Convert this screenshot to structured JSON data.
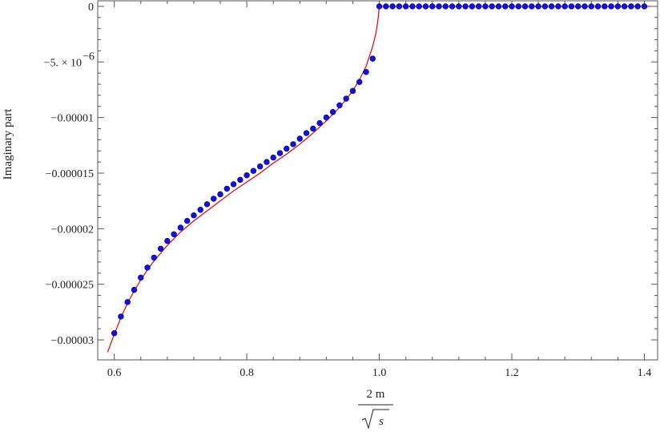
{
  "chart_data": {
    "type": "line",
    "title": "",
    "xlabel_numerator": "2 m",
    "xlabel_denominator": "s",
    "ylabel": "Imaginary part",
    "xlim": [
      0.575,
      1.42
    ],
    "ylim": [
      -3.18e-05,
      5e-07
    ],
    "x_ticks": [
      {
        "value": 0.6,
        "label": "0.6"
      },
      {
        "value": 0.8,
        "label": "0.8"
      },
      {
        "value": 1.0,
        "label": "1.0"
      },
      {
        "value": 1.2,
        "label": "1.2"
      },
      {
        "value": 1.4,
        "label": "1.4"
      }
    ],
    "y_ticks": [
      {
        "value": 0,
        "label": "0"
      },
      {
        "value": -5e-06,
        "label": "-5.×10^-6",
        "mantissa": "−5. × 10",
        "exponent": "−6"
      },
      {
        "value": -1e-05,
        "label": "−0.00001"
      },
      {
        "value": -1.5e-05,
        "label": "−0.000015"
      },
      {
        "value": -2e-05,
        "label": "−0.00002"
      },
      {
        "value": -2.5e-05,
        "label": "−0.000025"
      },
      {
        "value": -3e-05,
        "label": "−0.00003"
      }
    ],
    "grid": false,
    "legend": "none",
    "colors": {
      "curve": "#e00000",
      "points": "#1010ee",
      "point_outline": "#000066",
      "axis": "#555555"
    },
    "series": [
      {
        "kind": "curve",
        "x": [
          0.59,
          0.6,
          0.61,
          0.62,
          0.63,
          0.64,
          0.65,
          0.66,
          0.67,
          0.68,
          0.69,
          0.7,
          0.72,
          0.74,
          0.76,
          0.78,
          0.8,
          0.82,
          0.84,
          0.86,
          0.88,
          0.9,
          0.92,
          0.94,
          0.96,
          0.97,
          0.98,
          0.99,
          0.995,
          0.998,
          1.0,
          1.01,
          1.1,
          1.2,
          1.3,
          1.4,
          1.41
        ],
        "y": [
          -3.11e-05,
          -2.95e-05,
          -2.8e-05,
          -2.67e-05,
          -2.56e-05,
          -2.46e-05,
          -2.37e-05,
          -2.29e-05,
          -2.22e-05,
          -2.15e-05,
          -2.09e-05,
          -2.03e-05,
          -1.93e-05,
          -1.84e-05,
          -1.75e-05,
          -1.66e-05,
          -1.58e-05,
          -1.5e-05,
          -1.41e-05,
          -1.33e-05,
          -1.24e-05,
          -1.14e-05,
          -1.03e-05,
          -9.1e-06,
          -7.6e-06,
          -6.6e-06,
          -5.4e-06,
          -3.6e-06,
          -2.4e-06,
          -1.2e-06,
          0.0,
          0.0,
          0.0,
          0.0,
          0.0,
          0.0,
          0.0
        ]
      },
      {
        "kind": "points",
        "x": [
          0.6,
          0.61,
          0.62,
          0.63,
          0.64,
          0.65,
          0.66,
          0.67,
          0.68,
          0.69,
          0.7,
          0.71,
          0.72,
          0.73,
          0.74,
          0.75,
          0.76,
          0.77,
          0.78,
          0.79,
          0.8,
          0.81,
          0.82,
          0.83,
          0.84,
          0.85,
          0.86,
          0.87,
          0.88,
          0.89,
          0.9,
          0.91,
          0.92,
          0.93,
          0.94,
          0.95,
          0.96,
          0.97,
          0.98,
          0.99,
          1.0,
          1.01,
          1.02,
          1.03,
          1.04,
          1.05,
          1.06,
          1.07,
          1.08,
          1.09,
          1.1,
          1.11,
          1.12,
          1.13,
          1.14,
          1.15,
          1.16,
          1.17,
          1.18,
          1.19,
          1.2,
          1.21,
          1.22,
          1.23,
          1.24,
          1.25,
          1.26,
          1.27,
          1.28,
          1.29,
          1.3,
          1.31,
          1.32,
          1.33,
          1.34,
          1.35,
          1.36,
          1.37,
          1.38,
          1.39,
          1.4
        ],
        "y": [
          -2.94e-05,
          -2.79e-05,
          -2.66e-05,
          -2.55e-05,
          -2.44e-05,
          -2.35e-05,
          -2.26e-05,
          -2.18e-05,
          -2.11e-05,
          -2.05e-05,
          -1.99e-05,
          -1.93e-05,
          -1.88e-05,
          -1.83e-05,
          -1.78e-05,
          -1.73e-05,
          -1.69e-05,
          -1.64e-05,
          -1.6e-05,
          -1.56e-05,
          -1.52e-05,
          -1.48e-05,
          -1.44e-05,
          -1.4e-05,
          -1.36e-05,
          -1.32e-05,
          -1.28e-05,
          -1.24e-05,
          -1.19e-05,
          -1.14e-05,
          -1.1e-05,
          -1.05e-05,
          -1e-05,
          -9.5e-06,
          -8.9e-06,
          -8.3e-06,
          -7.6e-06,
          -6.8e-06,
          -5.9e-06,
          -4.7e-06,
          0.0,
          0.0,
          0.0,
          0.0,
          0.0,
          0.0,
          0.0,
          0.0,
          0.0,
          0.0,
          0.0,
          0.0,
          0.0,
          0.0,
          0.0,
          0.0,
          0.0,
          0.0,
          0.0,
          0.0,
          0.0,
          0.0,
          0.0,
          0.0,
          0.0,
          0.0,
          0.0,
          0.0,
          0.0,
          0.0,
          0.0,
          0.0,
          0.0,
          0.0,
          0.0,
          0.0,
          0.0,
          0.0,
          0.0,
          0.0,
          0.0
        ]
      }
    ]
  }
}
